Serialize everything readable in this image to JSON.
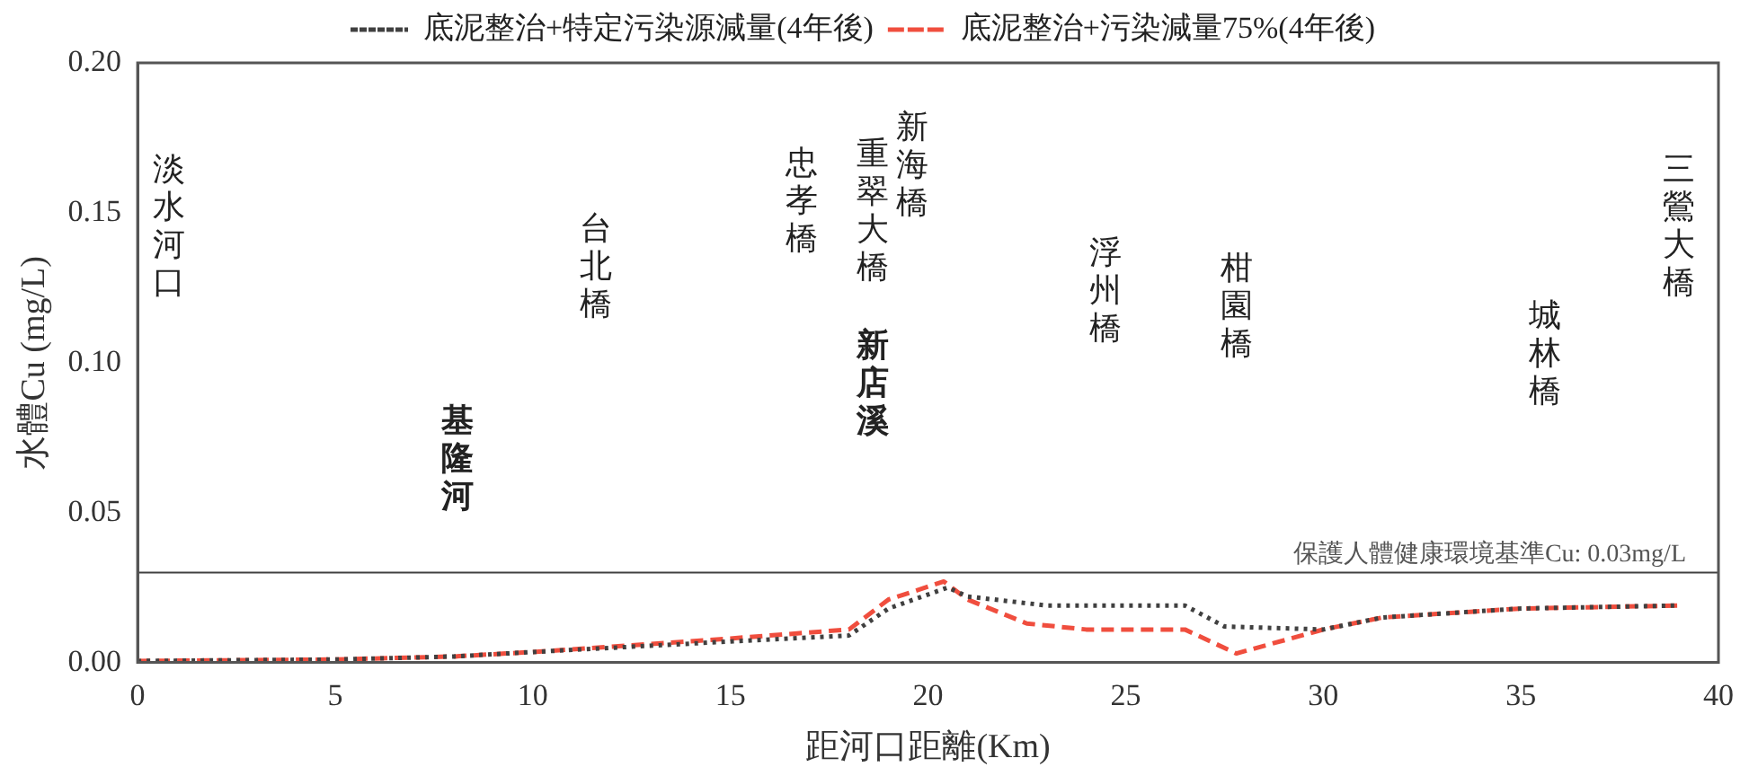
{
  "chart_data": {
    "type": "line",
    "xlabel": "距河口距離(Km)",
    "ylabel": "水體Cu (mg/L)",
    "xlim": [
      0,
      40
    ],
    "xticks": [
      0,
      5,
      10,
      15,
      20,
      25,
      30,
      35,
      40
    ],
    "ylim": [
      0,
      0.2
    ],
    "yticks": [
      {
        "value": 0,
        "label": "0.00"
      },
      {
        "value": 0.05,
        "label": "0.05"
      },
      {
        "value": 0.1,
        "label": "0.10"
      },
      {
        "value": 0.15,
        "label": "0.15"
      },
      {
        "value": 0.2,
        "label": "0.20"
      }
    ],
    "grid": false,
    "legend": "top",
    "marker": "none",
    "series": [
      {
        "name": "底泥整治+特定污染源減量(4年後)",
        "color": "#404040",
        "line_style": "dotted",
        "x": [
          0,
          5,
          8,
          10,
          15,
          18,
          19,
          20.5,
          21,
          23,
          26.5,
          27.5,
          30,
          31.5,
          35,
          39
        ],
        "values": [
          0.0005,
          0.001,
          0.002,
          0.0035,
          0.007,
          0.009,
          0.018,
          0.025,
          0.022,
          0.019,
          0.019,
          0.012,
          0.011,
          0.015,
          0.018,
          0.019
        ]
      },
      {
        "name": "底泥整治+污染減量75%(4年後)",
        "color": "#f04e3e",
        "line_style": "dashed",
        "x": [
          0,
          5,
          8,
          10,
          15,
          18,
          19,
          20.4,
          21,
          22.5,
          24,
          26.5,
          27.8,
          30,
          31.5,
          35,
          39
        ],
        "values": [
          0.0005,
          0.001,
          0.002,
          0.0035,
          0.008,
          0.011,
          0.021,
          0.027,
          0.021,
          0.013,
          0.011,
          0.011,
          0.003,
          0.011,
          0.015,
          0.018,
          0.019
        ]
      }
    ],
    "ref_lines": [
      {
        "axis": "y",
        "value": 0.03,
        "label": "保護人體健康環境基準Cu: 0.03mg/L",
        "color": "#404040"
      }
    ],
    "annotations": [
      "淡水河口",
      "基隆河",
      "台北橋",
      "忠孝橋",
      "重翠大橋",
      "新海橋",
      "新店溪",
      "浮州橋",
      "柑園橋",
      "城林橋",
      "三鶯大橋"
    ]
  }
}
